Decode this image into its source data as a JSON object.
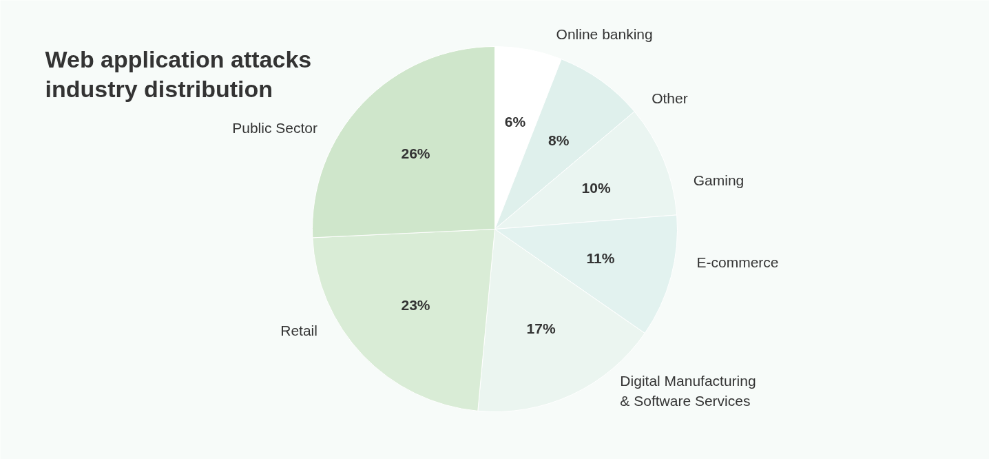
{
  "chart_data": {
    "type": "pie",
    "title": "Web application attacks\nindustry distribution",
    "categories": [
      "Online banking",
      "Other",
      "Gaming",
      "E-commerce",
      "Digital Manufacturing\n& Software Services",
      "Retail",
      "Public Sector"
    ],
    "values": [
      6,
      8,
      10,
      11,
      17,
      23,
      26
    ],
    "colors": [
      "#ffffff",
      "#dff0ec",
      "#eaf5f1",
      "#e2f2ef",
      "#ebf5f0",
      "#d9ecd6",
      "#cfe6cb"
    ],
    "value_labels": [
      "6%",
      "8%",
      "10%",
      "11%",
      "17%",
      "23%",
      "26%"
    ]
  }
}
